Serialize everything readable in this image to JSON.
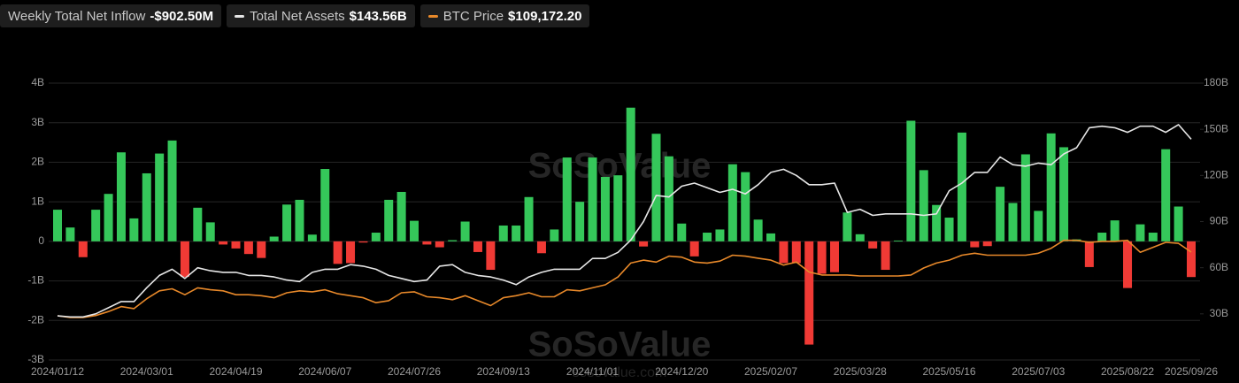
{
  "chart_data": {
    "type": "bar_line",
    "watermarks": [
      "SoSoValue",
      "SoSoValue"
    ],
    "watermark_url": "sosovalue.com",
    "categories": [
      "2024/01/12",
      null,
      null,
      null,
      null,
      null,
      null,
      "2024/03/01",
      null,
      null,
      null,
      null,
      null,
      null,
      "2024/04/19",
      null,
      null,
      null,
      null,
      null,
      null,
      "2024/06/07",
      null,
      null,
      null,
      null,
      null,
      null,
      "2024/07/26",
      null,
      null,
      null,
      null,
      null,
      null,
      "2024/09/13",
      null,
      null,
      null,
      null,
      null,
      null,
      "2024/11/01",
      null,
      null,
      null,
      null,
      null,
      null,
      "2024/12/20",
      null,
      null,
      null,
      null,
      null,
      null,
      "2025/02/07",
      null,
      null,
      null,
      null,
      null,
      null,
      "2025/03/28",
      null,
      null,
      null,
      null,
      null,
      null,
      "2025/05/16",
      null,
      null,
      null,
      null,
      null,
      null,
      "2025/07/03",
      null,
      null,
      null,
      null,
      null,
      null,
      "2025/08/22",
      null,
      null,
      null,
      null,
      "2025/09/26"
    ],
    "series": [
      {
        "name": "Weekly Total Net Inflow",
        "header_value": "-$902.50M",
        "kind": "bar",
        "axis": "y",
        "color": "#35c75a",
        "negative_color": "#f03a35",
        "values": [
          0.8,
          0.35,
          -0.4,
          0.8,
          1.2,
          2.25,
          0.58,
          1.72,
          2.22,
          2.55,
          -0.9,
          0.85,
          0.48,
          -0.08,
          -0.18,
          -0.32,
          -0.42,
          0.12,
          0.93,
          1.05,
          0.17,
          1.83,
          -0.57,
          -0.55,
          -0.03,
          0.22,
          1.05,
          1.25,
          0.52,
          -0.08,
          -0.15,
          0.03,
          0.5,
          -0.27,
          -0.72,
          0.4,
          0.4,
          1.12,
          -0.3,
          0.3,
          2.12,
          1.0,
          2.12,
          1.63,
          1.67,
          3.38,
          -0.13,
          2.72,
          2.15,
          0.45,
          -0.38,
          0.22,
          0.3,
          1.95,
          1.75,
          0.55,
          0.2,
          -0.55,
          -0.55,
          -2.61,
          -0.82,
          -0.78,
          0.73,
          0.18,
          -0.18,
          -0.72,
          0.02,
          3.05,
          1.8,
          0.92,
          0.6,
          2.75,
          -0.15,
          -0.12,
          1.38,
          0.97,
          2.2,
          0.77,
          2.73,
          2.38,
          0.05,
          -0.65,
          0.22,
          0.53,
          -1.18,
          0.43,
          0.22,
          2.33,
          0.88,
          -0.9025
        ]
      },
      {
        "name": "Total Net Assets",
        "header_value": "$143.56B",
        "kind": "line",
        "axis": "y2",
        "color": "#e6e6e6",
        "values": [
          28.7,
          28,
          28,
          30,
          34,
          38,
          38,
          47,
          55,
          59,
          53,
          60,
          58,
          57,
          57,
          55,
          55,
          54,
          52,
          51,
          57,
          59,
          59,
          62,
          61,
          59,
          55,
          53,
          51,
          52,
          61,
          62,
          57,
          55,
          54,
          52,
          49,
          54,
          57,
          59,
          59,
          59,
          66,
          66,
          70,
          78,
          90,
          107,
          106,
          113,
          115,
          112,
          109,
          111,
          108,
          114,
          122,
          124,
          120,
          114,
          114,
          115,
          96,
          98,
          94,
          95,
          95,
          95,
          94,
          95,
          110,
          115,
          122,
          122,
          132,
          127,
          126,
          128,
          127,
          134,
          138,
          151,
          152,
          151,
          148,
          152,
          152,
          148,
          153,
          143.56
        ]
      },
      {
        "name": "BTC Price",
        "header_value": "$109,172.20",
        "kind": "line",
        "axis": "y3",
        "color": "#e8892a",
        "values": [
          44700,
          43000,
          43000,
          45000,
          49000,
          54000,
          52000,
          62000,
          70000,
          72000,
          66000,
          73000,
          71000,
          70000,
          66000,
          66000,
          65000,
          63000,
          68000,
          70000,
          69000,
          71000,
          67000,
          65000,
          63000,
          58000,
          60000,
          68000,
          69000,
          64000,
          63000,
          61000,
          65000,
          60000,
          55000,
          63000,
          65000,
          68000,
          64000,
          64000,
          71000,
          70000,
          73000,
          76000,
          84000,
          98000,
          101000,
          99000,
          105000,
          104000,
          99000,
          98000,
          100000,
          106000,
          105000,
          103000,
          101000,
          96000,
          99000,
          89000,
          86000,
          86000,
          86000,
          85000,
          85000,
          85000,
          85000,
          86000,
          93000,
          98000,
          101000,
          106000,
          108000,
          106000,
          106000,
          106000,
          106000,
          108000,
          113000,
          121000,
          121000,
          119000,
          120000,
          120000,
          121000,
          109000,
          114000,
          119000,
          118000,
          109172.2
        ]
      }
    ],
    "ylim": [
      -3,
      4
    ],
    "yticks": [
      {
        "value": -3,
        "label": "-3B"
      },
      {
        "value": -2,
        "label": "-2B"
      },
      {
        "value": -1,
        "label": "-1B"
      },
      0,
      {
        "value": 1,
        "label": "1B"
      },
      {
        "value": 2,
        "label": "2B"
      },
      {
        "value": 3,
        "label": "3B"
      },
      {
        "value": 4,
        "label": "4B"
      }
    ],
    "y2lim": [
      0,
      180
    ],
    "y2ticks": [
      {
        "value": 30,
        "label": "30B"
      },
      {
        "value": 60,
        "label": "60B"
      },
      {
        "value": 90,
        "label": "90B"
      },
      {
        "value": 120,
        "label": "120B"
      },
      {
        "value": 150,
        "label": "150B"
      },
      {
        "value": 180,
        "label": "180B"
      }
    ],
    "y3lim": [
      0,
      280000
    ],
    "grid": true
  }
}
